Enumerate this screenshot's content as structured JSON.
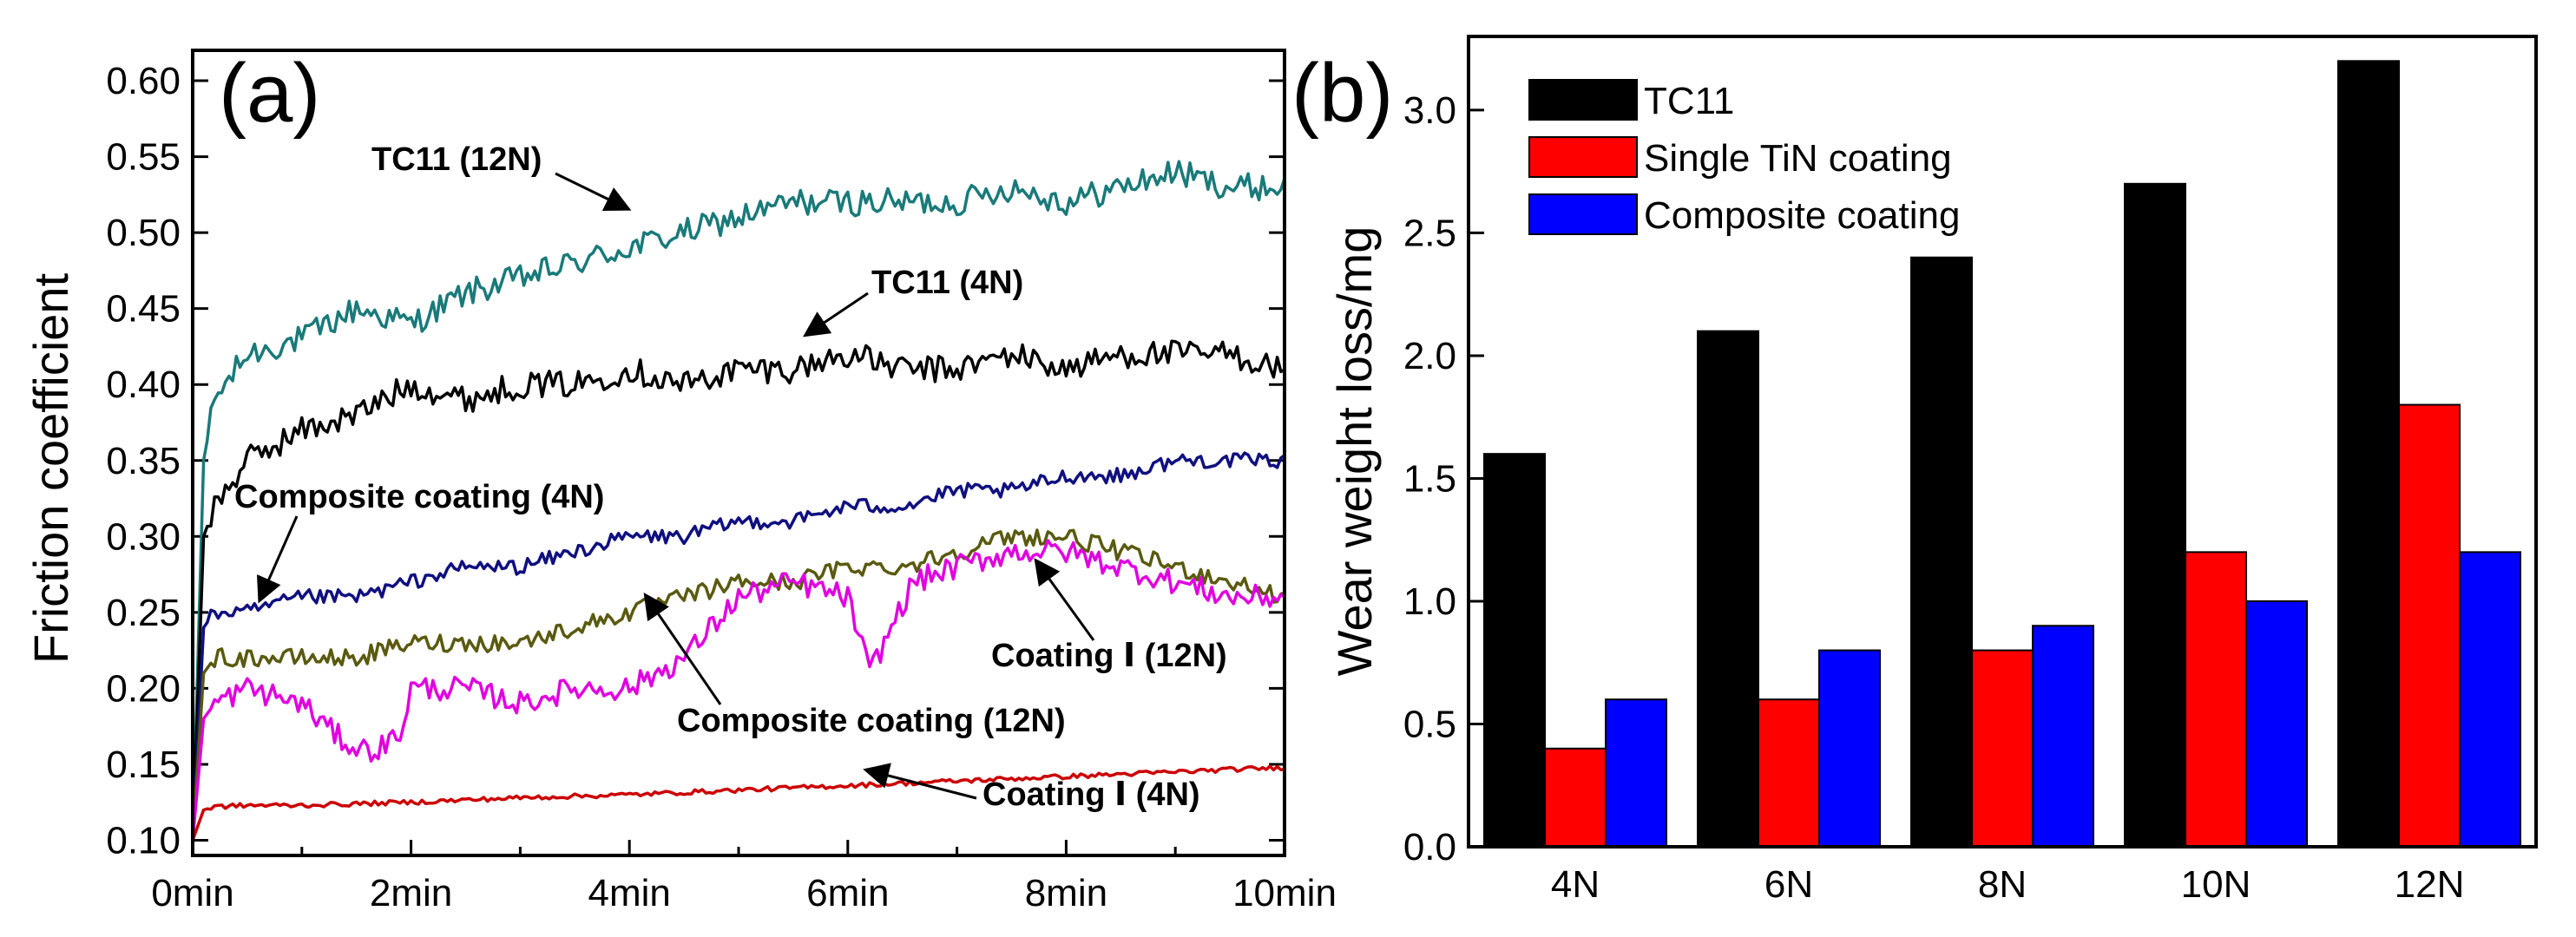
{
  "chart_data": [
    {
      "type": "line",
      "panel_label": "(a)",
      "title": "",
      "xlabel": "",
      "ylabel": "Friction coefficient",
      "xlim": [
        0,
        10
      ],
      "ylim": [
        0.09,
        0.62
      ],
      "x_ticks": [
        0,
        2,
        4,
        6,
        8,
        10
      ],
      "x_tick_labels": [
        "0min",
        "2min",
        "4min",
        "6min",
        "8min",
        "10min"
      ],
      "y_ticks": [
        0.1,
        0.15,
        0.2,
        0.25,
        0.3,
        0.35,
        0.4,
        0.45,
        0.5,
        0.55,
        0.6
      ],
      "y_tick_labels": [
        "0.10",
        "0.15",
        "0.20",
        "0.25",
        "0.30",
        "0.35",
        "0.40",
        "0.45",
        "0.50",
        "0.55",
        "0.60"
      ],
      "series": [
        {
          "name": "TC11 (12N)",
          "color": "#1a7a7a",
          "x": [
            0,
            0.1,
            0.2,
            0.5,
            1.0,
            1.5,
            2.0,
            2.5,
            3.0,
            3.5,
            4.0,
            4.5,
            5.0,
            5.5,
            6.0,
            6.5,
            7.0,
            7.5,
            8.0,
            8.5,
            9.0,
            9.5,
            10.0
          ],
          "values": [
            0.1,
            0.35,
            0.39,
            0.42,
            0.43,
            0.45,
            0.44,
            0.46,
            0.47,
            0.48,
            0.49,
            0.5,
            0.51,
            0.52,
            0.52,
            0.52,
            0.52,
            0.53,
            0.52,
            0.53,
            0.54,
            0.53,
            0.53
          ],
          "noise": 0.009
        },
        {
          "name": "TC11 (4N)",
          "color": "#000000",
          "x": [
            0,
            0.1,
            0.2,
            0.5,
            1.0,
            1.5,
            2.0,
            2.5,
            3.0,
            3.5,
            4.0,
            4.5,
            5.0,
            5.5,
            6.0,
            6.5,
            7.0,
            7.5,
            8.0,
            8.5,
            9.0,
            9.5,
            10.0
          ],
          "values": [
            0.1,
            0.3,
            0.32,
            0.35,
            0.37,
            0.38,
            0.4,
            0.39,
            0.4,
            0.4,
            0.41,
            0.4,
            0.41,
            0.41,
            0.42,
            0.41,
            0.41,
            0.42,
            0.41,
            0.42,
            0.42,
            0.42,
            0.41
          ],
          "noise": 0.009
        },
        {
          "name": "Composite coating (4N)",
          "color": "#101080",
          "x": [
            0,
            0.1,
            0.2,
            0.5,
            1.0,
            1.5,
            2.0,
            2.5,
            3.0,
            3.5,
            4.0,
            4.5,
            5.0,
            5.5,
            6.0,
            6.5,
            7.0,
            7.5,
            8.0,
            8.5,
            9.0,
            9.5,
            10.0
          ],
          "values": [
            0.1,
            0.24,
            0.25,
            0.25,
            0.26,
            0.26,
            0.27,
            0.28,
            0.28,
            0.29,
            0.3,
            0.3,
            0.31,
            0.31,
            0.32,
            0.32,
            0.33,
            0.33,
            0.34,
            0.34,
            0.35,
            0.35,
            0.35
          ],
          "noise": 0.005
        },
        {
          "name": "Composite coating (12N)",
          "color": "#5a5a10",
          "x": [
            0,
            0.1,
            0.2,
            0.5,
            1.0,
            1.5,
            2.0,
            2.5,
            3.0,
            3.5,
            4.0,
            4.5,
            5.0,
            5.5,
            6.0,
            6.5,
            7.0,
            7.5,
            8.0,
            8.5,
            9.0,
            9.5,
            10.0
          ],
          "values": [
            0.1,
            0.21,
            0.22,
            0.22,
            0.22,
            0.22,
            0.23,
            0.23,
            0.23,
            0.24,
            0.25,
            0.26,
            0.27,
            0.27,
            0.28,
            0.28,
            0.29,
            0.3,
            0.3,
            0.29,
            0.28,
            0.27,
            0.26
          ],
          "noise": 0.006
        },
        {
          "name": "Coating I (12N)",
          "color": "#e000e0",
          "x": [
            0,
            0.1,
            0.2,
            0.5,
            1.0,
            1.3,
            1.5,
            1.7,
            1.9,
            2.0,
            2.5,
            3.0,
            3.5,
            4.0,
            4.5,
            5.0,
            5.5,
            6.0,
            6.2,
            6.4,
            6.6,
            7.0,
            7.5,
            8.0,
            8.5,
            9.0,
            9.5,
            10.0
          ],
          "values": [
            0.1,
            0.18,
            0.19,
            0.2,
            0.19,
            0.17,
            0.16,
            0.16,
            0.17,
            0.2,
            0.2,
            0.19,
            0.2,
            0.2,
            0.22,
            0.26,
            0.27,
            0.26,
            0.21,
            0.24,
            0.27,
            0.28,
            0.29,
            0.29,
            0.28,
            0.27,
            0.26,
            0.26
          ],
          "noise": 0.008
        },
        {
          "name": "Coating I (4N)",
          "color": "#cc0000",
          "x": [
            0,
            0.1,
            0.2,
            0.5,
            1.0,
            2.0,
            3.0,
            4.0,
            5.0,
            6.0,
            7.0,
            8.0,
            9.0,
            10.0
          ],
          "values": [
            0.1,
            0.12,
            0.122,
            0.123,
            0.123,
            0.125,
            0.128,
            0.13,
            0.133,
            0.136,
            0.139,
            0.142,
            0.145,
            0.148
          ],
          "noise": 0.0015
        }
      ],
      "annotations": [
        {
          "text": "TC11 (12N)",
          "series": "TC11 (12N)"
        },
        {
          "text": "TC11 (4N)",
          "series": "TC11 (4N)"
        },
        {
          "text": "Composite coating (4N)",
          "series": "Composite coating (4N)"
        },
        {
          "text": "Coating Ⅰ (12N)",
          "series": "Coating I (12N)"
        },
        {
          "text": "Composite coating (12N)",
          "series": "Composite coating (12N)"
        },
        {
          "text": "Coating Ⅰ (4N)",
          "series": "Coating I (4N)"
        }
      ],
      "grid": false,
      "legend": "none"
    },
    {
      "type": "bar",
      "panel_label": "(b)",
      "title": "",
      "xlabel": "",
      "ylabel": "Wear weight loss/mg",
      "ylim": [
        0,
        3.3
      ],
      "y_ticks": [
        0.0,
        0.5,
        1.0,
        1.5,
        2.0,
        2.5,
        3.0
      ],
      "y_tick_labels": [
        "0.0",
        "0.5",
        "1.0",
        "1.5",
        "2.0",
        "2.5",
        "3.0"
      ],
      "categories": [
        "4N",
        "6N",
        "8N",
        "10N",
        "12N"
      ],
      "series": [
        {
          "name": "TC11",
          "color": "#000000",
          "values": [
            1.6,
            2.1,
            2.4,
            2.7,
            3.2
          ]
        },
        {
          "name": "Single TiN coating",
          "color": "#ff0000",
          "values": [
            0.4,
            0.6,
            0.8,
            1.2,
            1.8
          ]
        },
        {
          "name": "Composite coating",
          "color": "#0000ff",
          "values": [
            0.6,
            0.8,
            0.9,
            1.0,
            1.2
          ]
        }
      ],
      "grid": false,
      "legend": "top-left"
    }
  ]
}
